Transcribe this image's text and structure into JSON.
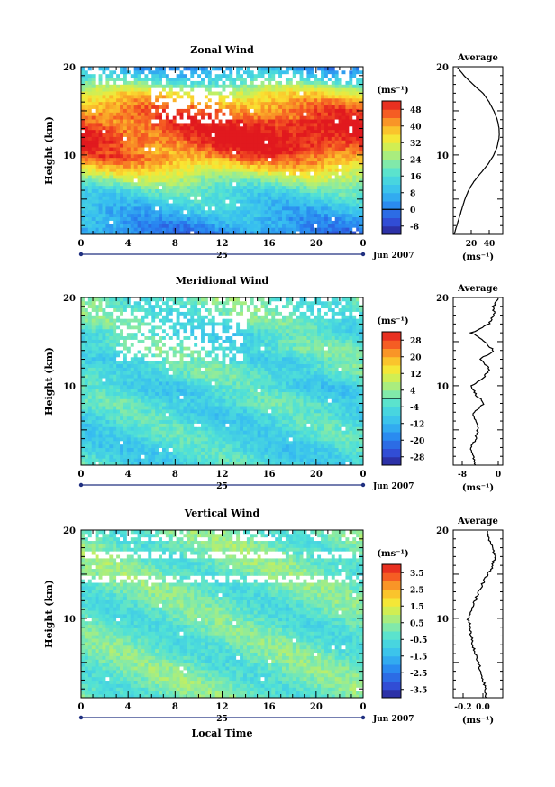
{
  "chart_data": [
    {
      "type": "heatmap",
      "title": "Zonal Wind",
      "xlabel": "",
      "ylabel": "Height (km)",
      "xlim": [
        0,
        24
      ],
      "ylim": [
        1,
        20
      ],
      "xticks": [
        "0",
        "4",
        "8",
        "12",
        "16",
        "20",
        "0"
      ],
      "yticks": [
        "10",
        "20"
      ],
      "date_day": "25",
      "date_label": "Jun 2007",
      "colorbar": {
        "unit": "(ms⁻¹)",
        "ticks": [
          "48",
          "40",
          "32",
          "24",
          "16",
          "8",
          "0",
          "-8"
        ],
        "min": -12,
        "max": 52,
        "zero_line": 0
      },
      "profile_est": [
        [
          1,
          1
        ],
        [
          2,
          4
        ],
        [
          3,
          7
        ],
        [
          4,
          10
        ],
        [
          5,
          13
        ],
        [
          6,
          17
        ],
        [
          7,
          23
        ],
        [
          8,
          31
        ],
        [
          9,
          39
        ],
        [
          10,
          45
        ],
        [
          11,
          49
        ],
        [
          12,
          51
        ],
        [
          13,
          51
        ],
        [
          14,
          49
        ],
        [
          15,
          45
        ],
        [
          16,
          40
        ],
        [
          17,
          33
        ],
        [
          18,
          22
        ],
        [
          19,
          12
        ],
        [
          20,
          4
        ]
      ],
      "average": {
        "title": "Average",
        "xlabel": "(ms⁻¹)",
        "xticks": [
          "20",
          "40"
        ],
        "yticks": [
          "10",
          "20"
        ],
        "xlim": [
          0,
          55
        ],
        "profile": [
          [
            1,
            1
          ],
          [
            2,
            4
          ],
          [
            3,
            7
          ],
          [
            4,
            10
          ],
          [
            5,
            13
          ],
          [
            6,
            17
          ],
          [
            7,
            23
          ],
          [
            8,
            31
          ],
          [
            9,
            39
          ],
          [
            10,
            45
          ],
          [
            11,
            49
          ],
          [
            12,
            51
          ],
          [
            13,
            51
          ],
          [
            14,
            49
          ],
          [
            15,
            45
          ],
          [
            16,
            40
          ],
          [
            17,
            33
          ],
          [
            18,
            22
          ],
          [
            19,
            12
          ],
          [
            20,
            4
          ]
        ]
      }
    },
    {
      "type": "heatmap",
      "title": "Meridional Wind",
      "xlabel": "",
      "ylabel": "Height (km)",
      "xlim": [
        0,
        24
      ],
      "ylim": [
        1,
        20
      ],
      "xticks": [
        "0",
        "4",
        "8",
        "12",
        "16",
        "20",
        "0"
      ],
      "yticks": [
        "10",
        "20"
      ],
      "date_day": "25",
      "date_label": "Jun 2007",
      "colorbar": {
        "unit": "(ms⁻¹)",
        "ticks": [
          "28",
          "20",
          "12",
          "4",
          "-4",
          "-12",
          "-20",
          "-28"
        ],
        "min": -32,
        "max": 32,
        "zero_line": 0
      },
      "profile_est": [
        [
          1,
          -5
        ],
        [
          2,
          -5.5
        ],
        [
          3,
          -6
        ],
        [
          4,
          -5
        ],
        [
          5,
          -4.5
        ],
        [
          6,
          -5
        ],
        [
          7,
          -5.5
        ],
        [
          8,
          -3
        ],
        [
          9,
          -5
        ],
        [
          10,
          -6
        ],
        [
          11,
          -3
        ],
        [
          12,
          -2
        ],
        [
          13,
          -4
        ],
        [
          14,
          -1
        ],
        [
          15,
          -3
        ],
        [
          16,
          -6
        ],
        [
          17,
          -2
        ],
        [
          18,
          -1
        ],
        [
          19,
          -1
        ],
        [
          20,
          0
        ]
      ],
      "average": {
        "title": "Average",
        "xlabel": "(ms⁻¹)",
        "xticks": [
          "-8",
          "0"
        ],
        "yticks": [
          "10",
          "20"
        ],
        "xlim": [
          -10,
          1
        ],
        "profile": [
          [
            1,
            -5
          ],
          [
            2,
            -5.5
          ],
          [
            3,
            -6
          ],
          [
            4,
            -5
          ],
          [
            5,
            -4.5
          ],
          [
            6,
            -5
          ],
          [
            7,
            -5.5
          ],
          [
            8,
            -3
          ],
          [
            9,
            -5
          ],
          [
            10,
            -6
          ],
          [
            11,
            -3
          ],
          [
            12,
            -2
          ],
          [
            13,
            -4
          ],
          [
            14,
            -1
          ],
          [
            15,
            -3
          ],
          [
            16,
            -6
          ],
          [
            17,
            -2
          ],
          [
            18,
            -1
          ],
          [
            19,
            -1
          ],
          [
            20,
            0
          ]
        ]
      }
    },
    {
      "type": "heatmap",
      "title": "Vertical Wind",
      "xlabel": "Local Time",
      "ylabel": "Height (km)",
      "xlim": [
        0,
        24
      ],
      "ylim": [
        1,
        20
      ],
      "xticks": [
        "0",
        "4",
        "8",
        "12",
        "16",
        "20",
        "0"
      ],
      "yticks": [
        "10",
        "20"
      ],
      "date_day": "25",
      "date_label": "Jun 2007",
      "colorbar": {
        "unit": "(ms⁻¹)",
        "ticks": [
          "3.5",
          "2.5",
          "1.5",
          "0.5",
          "-0.5",
          "-1.5",
          "-2.5",
          "-3.5"
        ],
        "min": -4,
        "max": 4,
        "zero_line": null
      },
      "profile_est": [
        [
          1,
          0.02
        ],
        [
          2,
          0.03
        ],
        [
          3,
          0.0
        ],
        [
          4,
          -0.02
        ],
        [
          5,
          -0.05
        ],
        [
          6,
          -0.08
        ],
        [
          7,
          -0.1
        ],
        [
          8,
          -0.12
        ],
        [
          9,
          -0.13
        ],
        [
          10,
          -0.15
        ],
        [
          11,
          -0.12
        ],
        [
          12,
          -0.08
        ],
        [
          13,
          -0.04
        ],
        [
          14,
          0.0
        ],
        [
          15,
          0.05
        ],
        [
          16,
          0.1
        ],
        [
          17,
          0.12
        ],
        [
          18,
          0.1
        ],
        [
          19,
          0.06
        ],
        [
          20,
          0.04
        ]
      ],
      "average": {
        "title": "Average",
        "xlabel": "(ms⁻¹)",
        "xticks": [
          "-0.2",
          "0.0"
        ],
        "yticks": [
          "10",
          "20"
        ],
        "xlim": [
          -0.3,
          0.2
        ],
        "profile": [
          [
            1,
            0.02
          ],
          [
            2,
            0.03
          ],
          [
            3,
            0.0
          ],
          [
            4,
            -0.02
          ],
          [
            5,
            -0.05
          ],
          [
            6,
            -0.08
          ],
          [
            7,
            -0.1
          ],
          [
            8,
            -0.12
          ],
          [
            9,
            -0.13
          ],
          [
            10,
            -0.15
          ],
          [
            11,
            -0.12
          ],
          [
            12,
            -0.08
          ],
          [
            13,
            -0.04
          ],
          [
            14,
            0.0
          ],
          [
            15,
            0.05
          ],
          [
            16,
            0.1
          ],
          [
            17,
            0.12
          ],
          [
            18,
            0.1
          ],
          [
            19,
            0.06
          ],
          [
            20,
            0.04
          ]
        ]
      }
    }
  ]
}
